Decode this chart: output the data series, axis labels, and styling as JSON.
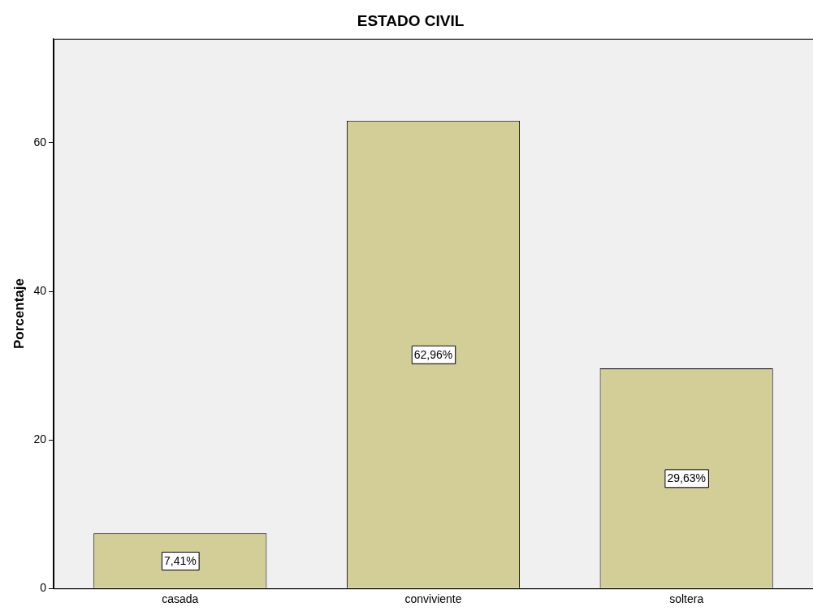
{
  "chart_data": {
    "type": "bar",
    "title": "ESTADO CIVIL",
    "ylabel": "Porcentaje",
    "categories": [
      "casada",
      "conviviente",
      "soltera"
    ],
    "values": [
      7.41,
      62.96,
      29.63
    ],
    "color": "#d3cd97",
    "value_labels": [
      "7,41%",
      "62,96%",
      "29,63%"
    ],
    "ylim": [
      0,
      74
    ],
    "yticks": [
      0,
      20,
      40,
      60
    ],
    "grid": false,
    "legend": false
  }
}
